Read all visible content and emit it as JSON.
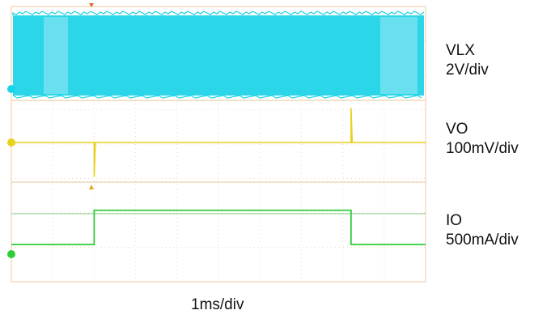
{
  "chart_data": {
    "type": "line",
    "title": "",
    "xlabel": "1ms/div",
    "ylabel": "",
    "grid": true,
    "time_divisions": 10,
    "vertical_divisions": 8,
    "load_step_on_ms": 2.0,
    "load_step_off_ms": 8.2,
    "series": [
      {
        "name": "VLX",
        "scale": "2V/div",
        "color": "#19d3e6",
        "waveform": "switching node, dense switching during whole capture; lighter burst regions at start and end",
        "low_level_div": 0.0,
        "high_level_div": 2.2
      },
      {
        "name": "VO",
        "scale": "100mV/div",
        "color": "#e8d21c",
        "baseline_div": 0.0,
        "events": [
          {
            "time_ms": 2.0,
            "deviation_div": -1.0
          },
          {
            "time_ms": 8.2,
            "deviation_div": 1.0
          }
        ]
      },
      {
        "name": "IO",
        "scale": "500mA/div",
        "color": "#2fcc3a",
        "x": [
          0,
          2.0,
          2.0,
          8.2,
          8.2,
          10
        ],
        "values": [
          0,
          0,
          1.15,
          1.15,
          0,
          0
        ]
      }
    ]
  },
  "labels": [
    {
      "line1": "VLX",
      "line2": "2V/div"
    },
    {
      "line1": "VO",
      "line2": "100mV/div"
    },
    {
      "line1": "IO",
      "line2": "500mA/div"
    }
  ]
}
